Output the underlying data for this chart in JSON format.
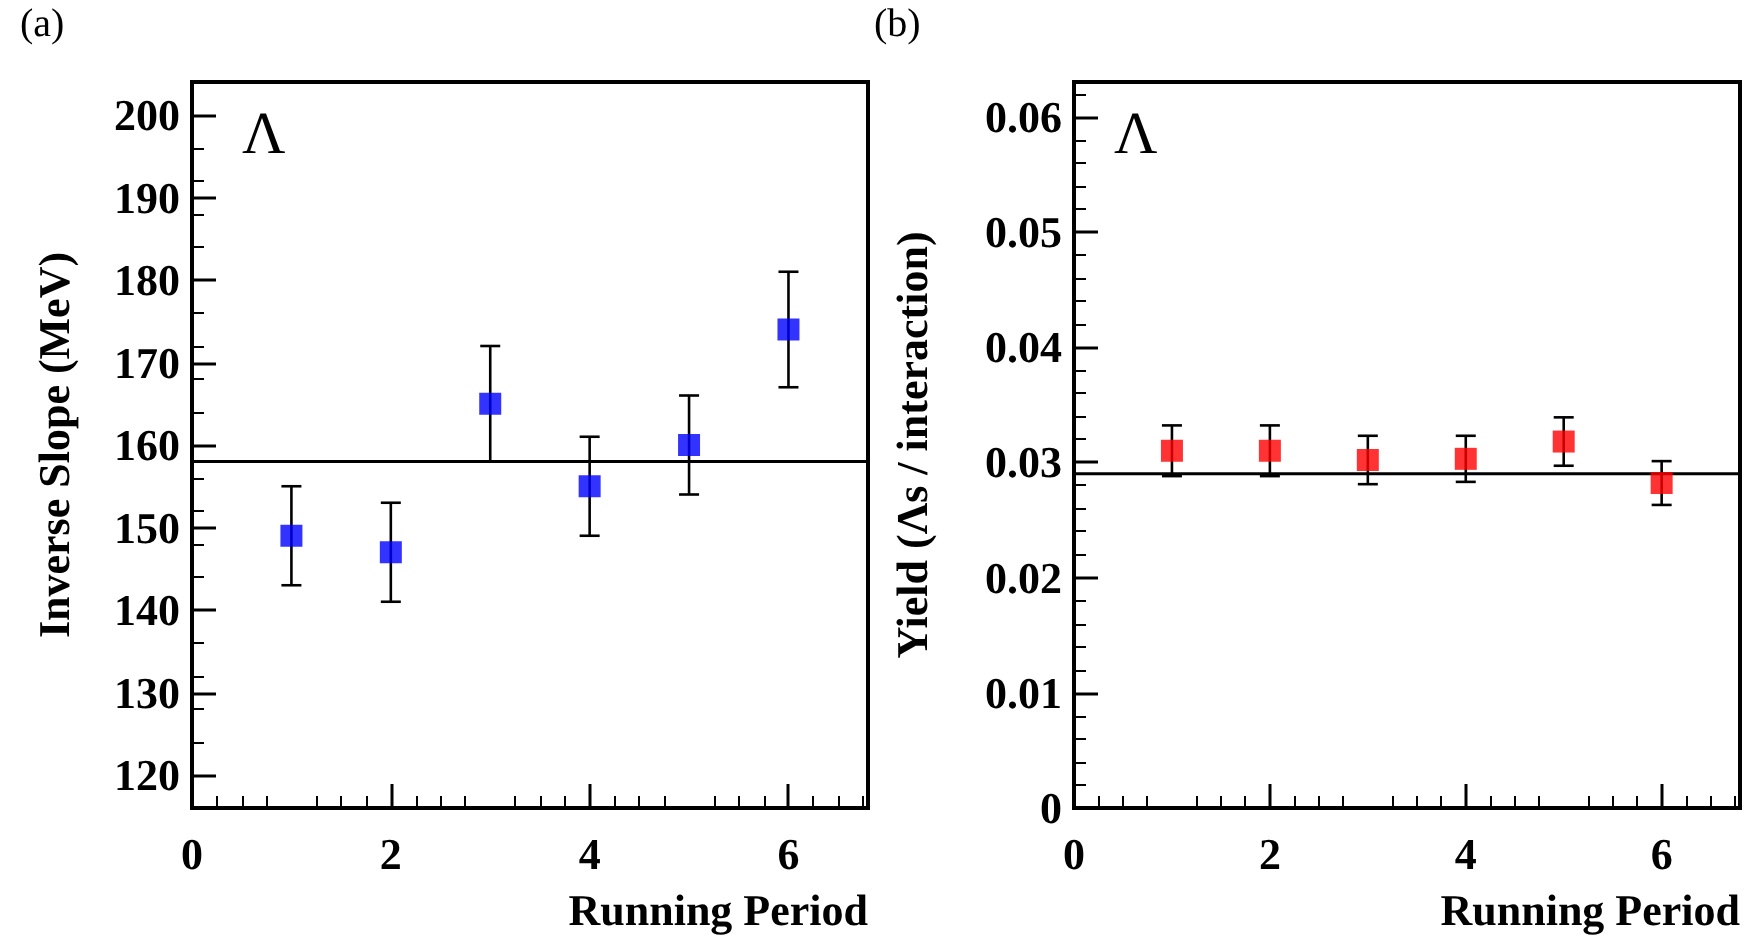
{
  "chart_data": [
    {
      "type": "scatter",
      "ylabel": "Inverse Slope (MeV)",
      "xlabel": "Running Period",
      "annotations": [
        "(a)",
        "Λ"
      ],
      "x": [
        1,
        2,
        3,
        4,
        5,
        6
      ],
      "series": [
        {
          "color": "#0000ff",
          "values": [
            149,
            147,
            165,
            155,
            160,
            174
          ],
          "errors": [
            6,
            6,
            7,
            6,
            6,
            7
          ]
        }
      ],
      "xlim": [
        0,
        6.8
      ],
      "xticks": [
        0,
        2,
        4,
        6
      ],
      "ylim": [
        116,
        204
      ],
      "yticks": [
        120,
        130,
        140,
        150,
        160,
        170,
        180,
        190,
        200
      ],
      "ref_lines": [
        {
          "axis": "y",
          "value": 158,
          "color": "#000000"
        }
      ],
      "marker": "square"
    },
    {
      "type": "scatter",
      "ylabel": "Yield (Λs / interaction)",
      "xlabel": "Running Period",
      "annotations": [
        "(b)",
        "Λ"
      ],
      "x": [
        1,
        2,
        3,
        4,
        5,
        6
      ],
      "series": [
        {
          "color": "#ff0000",
          "values": [
            0.031,
            0.031,
            0.0302,
            0.0303,
            0.0318,
            0.0282
          ],
          "errors": [
            0.0022,
            0.0022,
            0.0021,
            0.002,
            0.0021,
            0.0019
          ]
        }
      ],
      "xlim": [
        0,
        6.8
      ],
      "xticks": [
        0,
        2,
        4,
        6
      ],
      "ylim": [
        0,
        0.063
      ],
      "yticks": [
        0,
        0.01,
        0.02,
        0.03,
        0.04,
        0.05,
        0.06
      ],
      "ref_lines": [
        {
          "axis": "y",
          "value": 0.029,
          "color": "#000000"
        }
      ],
      "marker": "square"
    }
  ]
}
